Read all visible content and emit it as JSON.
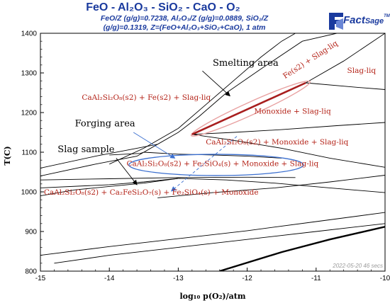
{
  "header": {
    "title": "FeO - Al₂O₃ - SiO₂ - CaO - O₂",
    "subtitle_line1": "FeO/Z (g/g)=0.7238, Al₂O₃/Z (g/g)=0.0889, SiO₂/Z",
    "subtitle_line2": "(g/g)=0.1319, Z=(FeO+Al₂O₃+SiO₂+CaO), 1 atm",
    "logo_main": "Fact",
    "logo_sub": "Sage",
    "logo_tm": "TM"
  },
  "chart_data": {
    "type": "line",
    "title": "FeO - Al₂O₃ - SiO₂ - CaO - O₂",
    "xlabel": "log₁₀ p(O₂)/atm",
    "ylabel": "T(C)",
    "xlim": [
      -15,
      -10
    ],
    "ylim": [
      800,
      1400
    ],
    "xticks": [
      -15,
      -14,
      -13,
      -12,
      -11,
      -10
    ],
    "yticks": [
      800,
      900,
      1000,
      1100,
      1200,
      1300,
      1400
    ],
    "grid": false,
    "timestamp": "2022-05-20 46 secs",
    "series": [
      {
        "x": [
          -15,
          -14.2,
          -13.6,
          -13.3
        ],
        "y": [
          1060,
          1090,
          1110,
          1120
        ]
      },
      {
        "x": [
          -13.3,
          -13.0,
          -12.7,
          -12.3,
          -11.8,
          -11.2,
          -10.7
        ],
        "y": [
          1120,
          1150,
          1190,
          1250,
          1310,
          1380,
          1400
        ]
      },
      {
        "x": [
          -14.0,
          -13.5,
          -13.0,
          -12.6,
          -12.2,
          -11.8,
          -11.5,
          -11.3
        ],
        "y": [
          1070,
          1110,
          1160,
          1220,
          1280,
          1340,
          1380,
          1400
        ]
      },
      {
        "x": [
          -12.8,
          -12.3,
          -11.8,
          -11.15
        ],
        "y": [
          1145,
          1185,
          1225,
          1275
        ]
      },
      {
        "x": [
          -11.15,
          -10.6,
          -10
        ],
        "y": [
          1275,
          1330,
          1400
        ]
      },
      {
        "x": [
          -11.15,
          -10.5,
          -10
        ],
        "y": [
          1275,
          1265,
          1258
        ]
      },
      {
        "x": [
          -12.8,
          -12.2,
          -11.5,
          -10.7,
          -10
        ],
        "y": [
          1145,
          1150,
          1157,
          1167,
          1175
        ]
      },
      {
        "x": [
          -12.8,
          -12.2,
          -11.5,
          -10.8,
          -10
        ],
        "y": [
          1145,
          1130,
          1110,
          1085,
          1062
        ]
      },
      {
        "x": [
          -15,
          -14.2,
          -13.6,
          -13.5,
          -13.3
        ],
        "y": [
          1040,
          1070,
          1090,
          1100,
          1120
        ]
      },
      {
        "x": [
          -14.0,
          -13.55,
          -13.5
        ],
        "y": [
          1093,
          1097,
          1100
        ]
      },
      {
        "x": [
          -13.5,
          -13.0,
          -12.5,
          -12.0,
          -11.5
        ],
        "y": [
          1100,
          1095,
          1093,
          1090,
          1085
        ]
      },
      {
        "x": [
          -15,
          -14.0,
          -13.0,
          -12.0,
          -11.3
        ],
        "y": [
          1030,
          1033,
          1036,
          1037,
          1036
        ]
      },
      {
        "x": [
          -15,
          -14.0,
          -13.5,
          -13.0
        ],
        "y": [
          1010,
          1018,
          1025,
          1034
        ]
      },
      {
        "x": [
          -13.0,
          -12.3,
          -11.6,
          -10.8,
          -10
        ],
        "y": [
          1034,
          1030,
          1022,
          1010,
          998
        ]
      },
      {
        "x": [
          -15,
          -14.5,
          -13.5,
          -13.0
        ],
        "y": [
          990,
          1005,
          1022,
          1034
        ]
      },
      {
        "x": [
          -13.3,
          -12.5,
          -11.6,
          -10.8,
          -10
        ],
        "y": [
          985,
          998,
          1010,
          1025,
          1042
        ]
      },
      {
        "x": [
          -14.8,
          -14.0,
          -13.0,
          -12.0,
          -11.0,
          -10
        ],
        "y": [
          820,
          840,
          860,
          880,
          900,
          920
        ]
      },
      {
        "x": [
          -15,
          -14.0,
          -13.0,
          -12.0,
          -11.0,
          -10
        ],
        "y": [
          840,
          862,
          882,
          902,
          925,
          948
        ]
      },
      {
        "x": [
          -12.4,
          -11.5,
          -10.8,
          -10
        ],
        "y": [
          800,
          848,
          880,
          912
        ]
      }
    ],
    "labels": [
      {
        "text": "Smelting area",
        "x": -12.5,
        "y": 1318
      },
      {
        "text": "Fe(s2) + Slag-liq",
        "x": -11.45,
        "y": 1285
      },
      {
        "text": "Slag-liq",
        "x": -10.55,
        "y": 1300
      },
      {
        "text": "CaAl₂Si₂O₈(s2) + Fe(s2) + Slag-liq",
        "x": -14.4,
        "y": 1232
      },
      {
        "text": "Monoxide + Slag-liq",
        "x": -11.9,
        "y": 1197
      },
      {
        "text": "Forging area",
        "x": -14.5,
        "y": 1165
      },
      {
        "text": "CaAl₂Si₂O₈(s2) + Monoxide + Slag-liq",
        "x": -12.6,
        "y": 1120
      },
      {
        "text": "Slag sample",
        "x": -14.75,
        "y": 1100
      },
      {
        "text": "CaAl₂Si₂O₈(s2) + Fe₂SiO₄(s) + Monoxide + Slag-liq",
        "x": -13.75,
        "y": 1065
      },
      {
        "text": "CaAl₂Si₂O₈(s2) + Ca₂FeSi₂O₇(s) + Fe₂SiO₄(s) + Monoxide",
        "x": -14.95,
        "y": 993
      }
    ],
    "colors": {
      "axis": "#000000",
      "phase_label": "#b42318",
      "highlight": "#e8a0a0",
      "smelting_line": "#a81e1e",
      "forging_ellipse": "#3b6fcf"
    }
  }
}
